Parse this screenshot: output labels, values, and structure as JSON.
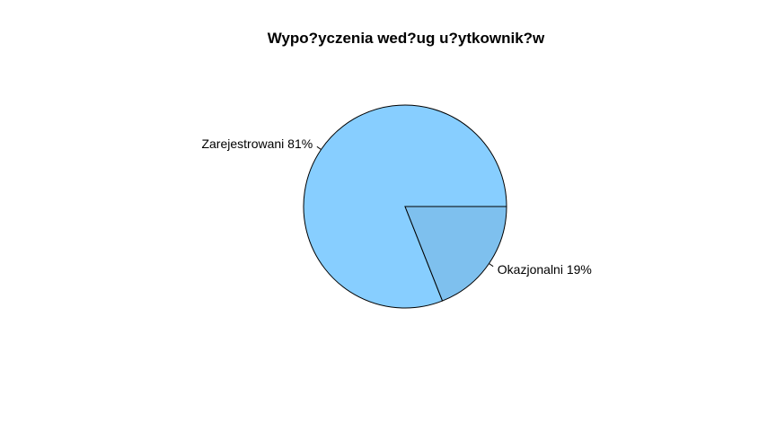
{
  "chart_data": {
    "type": "pie",
    "title": "Wypo?yczenia wed?ug u?ytkownik?w",
    "slices": [
      {
        "label": "Zarejestrowani 81%",
        "value": 81,
        "color": "#87CEFF"
      },
      {
        "label": "Okazjonalni 19%",
        "value": 19,
        "color": "#7EC0EE"
      }
    ],
    "start_angle_deg": 0,
    "direction": "counterclockwise",
    "border_color": "#000000"
  }
}
